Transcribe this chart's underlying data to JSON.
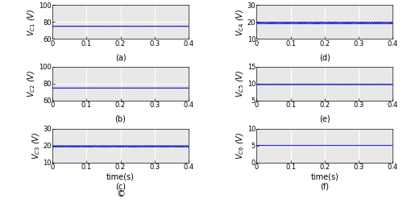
{
  "subplots": [
    {
      "label": "(a)",
      "ylabel": "$V_{C1}$ (V)",
      "yval": 75,
      "ylim": [
        60,
        100
      ],
      "yticks": [
        60,
        80,
        100
      ],
      "noise_amp": 0.4,
      "noise_freq": 200
    },
    {
      "label": "(b)",
      "ylabel": "$V_{C2}$ (V)",
      "yval": 75,
      "ylim": [
        60,
        100
      ],
      "yticks": [
        60,
        80,
        100
      ],
      "noise_amp": 0.4,
      "noise_freq": 200
    },
    {
      "label": "(c)",
      "ylabel": "$V_{C3}$ (V)",
      "yval": 19.5,
      "ylim": [
        10,
        30
      ],
      "yticks": [
        10,
        20,
        30
      ],
      "noise_amp": 0.5,
      "noise_freq": 200
    },
    {
      "label": "(d)",
      "ylabel": "$V_{C4}$ (V)",
      "yval": 19.5,
      "ylim": [
        10,
        30
      ],
      "yticks": [
        10,
        20,
        30
      ],
      "noise_amp": 0.6,
      "noise_freq": 200
    },
    {
      "label": "(e)",
      "ylabel": "$V_{C5}$ (V)",
      "yval": 9.8,
      "ylim": [
        5,
        15
      ],
      "yticks": [
        5,
        10,
        15
      ],
      "noise_amp": 0.15,
      "noise_freq": 200
    },
    {
      "label": "(f)",
      "ylabel": "$V_{C6}$ (V)",
      "yval": 5.0,
      "ylim": [
        0,
        10
      ],
      "yticks": [
        0,
        5,
        10
      ],
      "noise_amp": 0.08,
      "noise_freq": 200
    }
  ],
  "xlim": [
    0,
    0.4
  ],
  "xticks": [
    0,
    0.1,
    0.2,
    0.3,
    0.4
  ],
  "line_color": "#0000CC",
  "line_width": 0.6,
  "bg_color": "#E8E8E8",
  "grid_color": "white",
  "xlabel": "time(s)",
  "label_fontsize": 7,
  "tick_fontsize": 6,
  "sublabel_fontsize": 7,
  "copyright_text": "©"
}
